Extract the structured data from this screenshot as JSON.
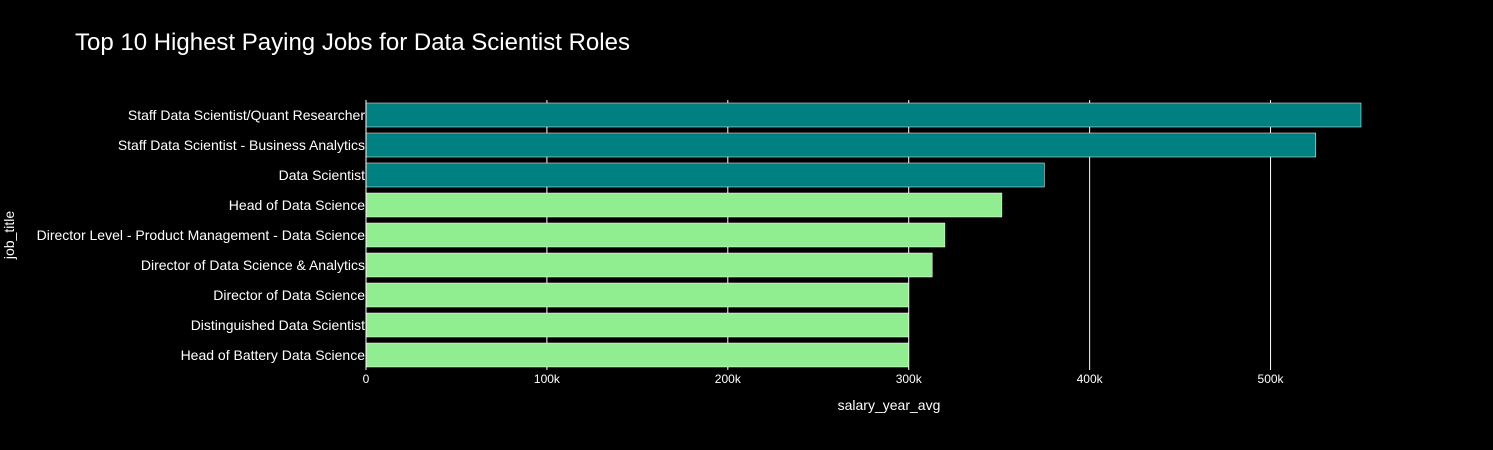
{
  "chart_data": {
    "type": "bar",
    "orientation": "horizontal",
    "title": "Top 10 Highest Paying Jobs for Data Scientist Roles",
    "xlabel": "salary_year_avg",
    "ylabel": "job_title",
    "xlim": [
      0,
      550000
    ],
    "xticks": [
      {
        "value": 0,
        "label": "0"
      },
      {
        "value": 100000,
        "label": "100k"
      },
      {
        "value": 200000,
        "label": "200k"
      },
      {
        "value": 300000,
        "label": "300k"
      },
      {
        "value": 400000,
        "label": "400k"
      },
      {
        "value": 500000,
        "label": "500k"
      }
    ],
    "grid": true,
    "categories": [
      "Staff Data Scientist/Quant Researcher",
      "Staff Data Scientist - Business Analytics",
      "Data Scientist",
      "Head of Data Science",
      "Director Level - Product Management - Data Science",
      "Director of Data Science & Analytics",
      "Director of Data Science",
      "Distinguished Data Scientist",
      "Head of Battery Data Science"
    ],
    "values": [
      550000,
      525000,
      375000,
      351500,
      320000,
      313000,
      300000,
      300000,
      300000
    ],
    "bar_colors": [
      "#008080",
      "#008080",
      "#008080",
      "#90ee90",
      "#90ee90",
      "#90ee90",
      "#90ee90",
      "#90ee90",
      "#90ee90"
    ]
  },
  "theme": {
    "background": "#000000",
    "text": "#ffffff",
    "grid": "#ffffff",
    "bar_outline": "#ffffff"
  }
}
